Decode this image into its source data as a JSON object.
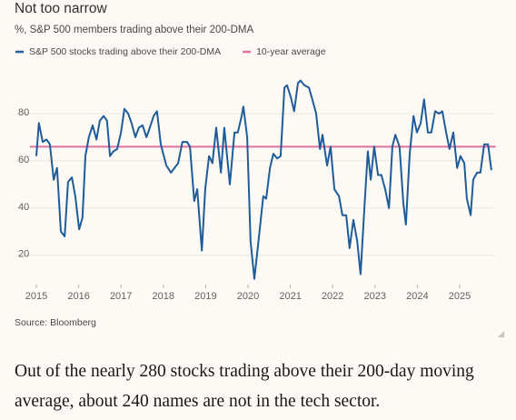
{
  "chart_data": {
    "type": "line",
    "title": "Not too narrow",
    "subtitle": "%, S&P 500 members trading above their 200-DMA",
    "source": "Source: Bloomberg",
    "x": [
      2015.0,
      2015.06,
      2015.15,
      2015.24,
      2015.32,
      2015.41,
      2015.49,
      2015.58,
      2015.67,
      2015.75,
      2015.84,
      2015.92,
      2016.01,
      2016.09,
      2016.16,
      2016.24,
      2016.33,
      2016.42,
      2016.5,
      2016.59,
      2016.67,
      2016.74,
      2016.82,
      2016.91,
      2017.0,
      2017.08,
      2017.17,
      2017.25,
      2017.34,
      2017.42,
      2017.51,
      2017.6,
      2017.68,
      2017.77,
      2017.85,
      2017.94,
      2018.07,
      2018.18,
      2018.35,
      2018.45,
      2018.56,
      2018.63,
      2018.73,
      2018.8,
      2018.91,
      2018.99,
      2019.08,
      2019.16,
      2019.25,
      2019.36,
      2019.44,
      2019.57,
      2019.68,
      2019.76,
      2019.85,
      2019.89,
      2019.98,
      2020.06,
      2020.15,
      2020.26,
      2020.36,
      2020.43,
      2020.52,
      2020.6,
      2020.69,
      2020.77,
      2020.86,
      2020.92,
      2021.01,
      2021.09,
      2021.18,
      2021.24,
      2021.33,
      2021.44,
      2021.52,
      2021.61,
      2021.7,
      2021.76,
      2021.87,
      2021.95,
      2022.04,
      2022.15,
      2022.23,
      2022.32,
      2022.4,
      2022.49,
      2022.58,
      2022.66,
      2022.75,
      2022.83,
      2022.9,
      2022.98,
      2023.07,
      2023.15,
      2023.24,
      2023.33,
      2023.41,
      2023.48,
      2023.58,
      2023.67,
      2023.73,
      2023.82,
      2023.91,
      2023.99,
      2024.08,
      2024.16,
      2024.25,
      2024.33,
      2024.42,
      2024.51,
      2024.59,
      2024.68,
      2024.76,
      2024.85,
      2024.94,
      2025.02,
      2025.11,
      2025.17,
      2025.26,
      2025.32,
      2025.41,
      2025.49,
      2025.58,
      2025.67,
      2025.75
    ],
    "series": [
      {
        "name": "S&P 500 stocks trading above their 200-DMA",
        "color": "#1f5c99",
        "values": [
          62,
          76,
          68,
          69,
          67,
          52,
          57,
          30,
          28,
          51,
          53,
          45,
          31,
          36,
          62,
          70,
          75,
          69,
          77,
          79,
          77,
          62,
          64,
          65,
          72,
          82,
          80,
          76,
          70,
          74,
          75,
          70,
          74,
          79,
          81,
          67,
          58,
          55,
          59,
          68,
          68,
          66,
          43,
          48,
          22,
          48,
          62,
          59,
          74,
          55,
          74,
          50,
          72,
          72,
          79,
          83,
          70,
          26,
          10,
          28,
          45,
          44,
          57,
          63,
          61,
          62,
          91,
          92,
          87,
          81,
          93,
          94,
          92,
          91,
          86,
          80,
          65,
          71,
          58,
          66,
          48,
          45,
          37,
          37,
          23,
          35,
          26,
          12,
          40,
          64,
          52,
          66,
          54,
          54,
          48,
          40,
          66,
          71,
          66,
          42,
          33,
          63,
          79,
          72,
          76,
          86,
          72,
          72,
          81,
          80,
          81,
          72,
          65,
          72,
          57,
          62,
          59,
          44,
          37,
          52,
          55,
          55,
          67,
          67,
          56
        ]
      }
    ],
    "reference": {
      "name": "10-year average",
      "value": 66,
      "color": "#e0719c"
    },
    "xlim": [
      2014.85,
      2025.85
    ],
    "xticks": [
      2015,
      2016,
      2017,
      2018,
      2019,
      2020,
      2021,
      2022,
      2023,
      2024,
      2025
    ],
    "ylim": [
      8,
      98
    ],
    "yticks": [
      20,
      40,
      60,
      80
    ],
    "grid": true
  },
  "caption": "Out of the nearly 280 stocks trading above their 200-day moving average, about 240 names are not in the tech sector."
}
